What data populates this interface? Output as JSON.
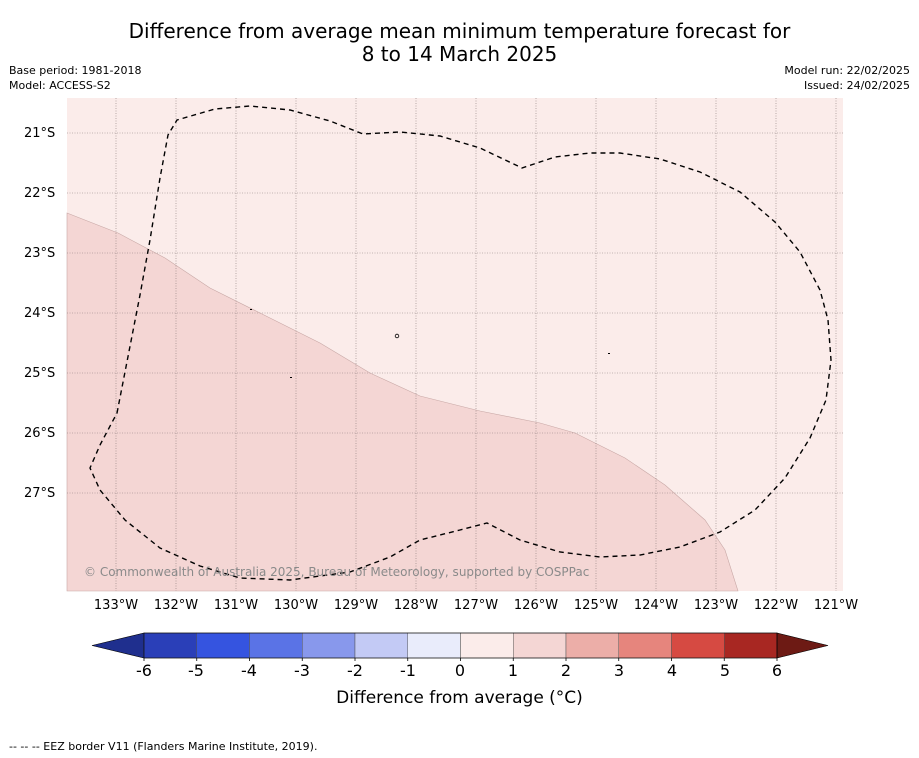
{
  "title": {
    "line1": "Difference from average mean minimum temperature forecast for",
    "line2": "8 to 14 March 2025"
  },
  "meta": {
    "base_period": "Base period: 1981-2018",
    "model": "Model: ACCESS-S2",
    "model_run": "Model run: 22/02/2025",
    "issued": "Issued: 24/02/2025"
  },
  "map": {
    "copyright": "© Commonwealth of Australia 2025, Bureau of Meteorology, supported by COSPPac",
    "lat_labels": [
      "21°S",
      "22°S",
      "23°S",
      "24°S",
      "25°S",
      "26°S",
      "27°S"
    ],
    "lon_labels": [
      "133°W",
      "132°W",
      "131°W",
      "130°W",
      "129°W",
      "128°W",
      "127°W",
      "126°W",
      "125°W",
      "124°W",
      "123°W",
      "122°W",
      "121°W"
    ],
    "region_colors": {
      "0_to_1": "#fbecea",
      "1_to_2": "#f4d6d4"
    },
    "border_style": "dashed"
  },
  "colorbar": {
    "title": "Difference from average (°C)",
    "ticks": [
      "-6",
      "-5",
      "-4",
      "-3",
      "-2",
      "-1",
      "0",
      "1",
      "2",
      "3",
      "4",
      "5",
      "6"
    ],
    "colors": [
      "#1f2f8e",
      "#2a3fb8",
      "#3554e0",
      "#5a73e6",
      "#8898ec",
      "#c3caf5",
      "#e9ecfb",
      "#fbecea",
      "#f4d6d4",
      "#ecaea8",
      "#e6857d",
      "#d64a42",
      "#a82722",
      "#6d1a14"
    ]
  },
  "footnote": "-- -- -- EEZ border V11 (Flanders Marine Institute, 2019)."
}
